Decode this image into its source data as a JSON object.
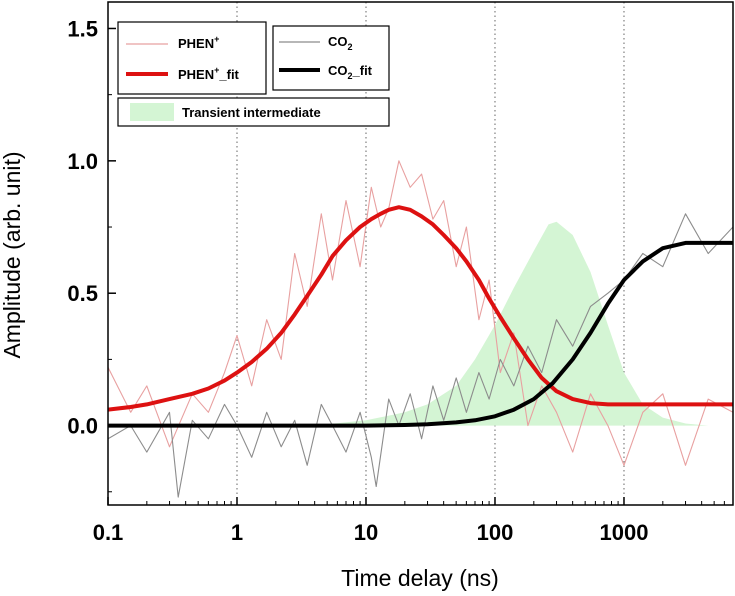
{
  "chart_data": {
    "type": "line",
    "xscale": "log",
    "xlabel": "Time delay (ns)",
    "ylabel": "Amplitude (arb. unit)",
    "xlim": [
      0.1,
      7000
    ],
    "ylim": [
      -0.3,
      1.6
    ],
    "xticks": [
      0.1,
      1,
      10,
      100,
      1000
    ],
    "xtick_labels": [
      "0.1",
      "1",
      "10",
      "100",
      "1000"
    ],
    "yticks": [
      0.0,
      0.5,
      1.0,
      1.5
    ],
    "ytick_labels": [
      "0.0",
      "0.5",
      "1.0",
      "1.5"
    ],
    "vertical_gridlines": [
      1,
      10,
      100,
      1000
    ],
    "series": [
      {
        "name": "PHEN+",
        "kind": "raw",
        "color": "#e8a0a0",
        "x": [
          0.1,
          0.15,
          0.2,
          0.3,
          0.45,
          0.6,
          0.8,
          1.0,
          1.3,
          1.7,
          2.2,
          2.8,
          3.5,
          4.5,
          5.5,
          7,
          9,
          11,
          13,
          15,
          18,
          22,
          27,
          33,
          40,
          50,
          60,
          75,
          90,
          110,
          140,
          180,
          230,
          300,
          400,
          550,
          750,
          1000,
          1400,
          2000,
          3000,
          4500,
          7000
        ],
        "values": [
          0.22,
          0.05,
          0.15,
          -0.08,
          0.12,
          0.05,
          0.2,
          0.34,
          0.15,
          0.4,
          0.25,
          0.65,
          0.45,
          0.8,
          0.55,
          0.85,
          0.6,
          0.9,
          0.75,
          0.82,
          1.0,
          0.9,
          0.95,
          0.78,
          0.85,
          0.6,
          0.75,
          0.4,
          0.55,
          0.2,
          0.35,
          0.0,
          0.15,
          0.05,
          -0.1,
          0.12,
          0.0,
          -0.15,
          0.05,
          0.12,
          -0.15,
          0.1,
          0.05
        ]
      },
      {
        "name": "CO2",
        "kind": "raw",
        "color": "#8c8c8c",
        "x": [
          0.1,
          0.15,
          0.2,
          0.3,
          0.35,
          0.45,
          0.6,
          0.8,
          1.0,
          1.3,
          1.7,
          2.2,
          2.8,
          3.5,
          4.5,
          5.5,
          7,
          9,
          11,
          12,
          15,
          18,
          22,
          27,
          33,
          40,
          50,
          60,
          75,
          90,
          110,
          140,
          180,
          230,
          300,
          400,
          550,
          750,
          1000,
          1400,
          2000,
          3000,
          4500,
          7000
        ],
        "values": [
          -0.05,
          0.0,
          -0.1,
          0.05,
          -0.27,
          0.02,
          -0.05,
          0.08,
          0.0,
          -0.12,
          0.05,
          -0.08,
          0.02,
          -0.15,
          0.08,
          0.0,
          -0.1,
          0.05,
          -0.12,
          -0.23,
          0.1,
          0.0,
          0.12,
          -0.05,
          0.15,
          0.02,
          0.18,
          0.05,
          0.2,
          0.1,
          0.25,
          0.15,
          0.3,
          0.2,
          0.4,
          0.3,
          0.45,
          0.5,
          0.55,
          0.65,
          0.6,
          0.8,
          0.65,
          0.75
        ]
      },
      {
        "name": "PHEN+_fit",
        "kind": "fit",
        "color": "#dd1111",
        "x": [
          0.1,
          0.15,
          0.2,
          0.3,
          0.45,
          0.6,
          0.8,
          1.0,
          1.3,
          1.7,
          2.2,
          2.8,
          3.5,
          4.5,
          5.5,
          7,
          9,
          11,
          13,
          15,
          18,
          22,
          27,
          33,
          40,
          50,
          60,
          75,
          90,
          110,
          140,
          180,
          230,
          300,
          400,
          550,
          750,
          1000,
          1400,
          2000,
          3000,
          4500,
          7000
        ],
        "values": [
          0.06,
          0.07,
          0.08,
          0.1,
          0.12,
          0.14,
          0.17,
          0.2,
          0.24,
          0.29,
          0.35,
          0.42,
          0.49,
          0.57,
          0.64,
          0.7,
          0.75,
          0.78,
          0.8,
          0.815,
          0.825,
          0.815,
          0.79,
          0.76,
          0.72,
          0.67,
          0.62,
          0.55,
          0.48,
          0.41,
          0.33,
          0.25,
          0.18,
          0.13,
          0.1,
          0.085,
          0.08,
          0.08,
          0.08,
          0.08,
          0.08,
          0.08,
          0.08
        ]
      },
      {
        "name": "CO2_fit",
        "kind": "fit",
        "color": "#000000",
        "x": [
          0.1,
          1,
          10,
          20,
          30,
          50,
          70,
          100,
          140,
          200,
          280,
          400,
          550,
          750,
          1000,
          1400,
          2000,
          3000,
          4500,
          7000
        ],
        "values": [
          0.0,
          0.0,
          0.0,
          0.002,
          0.005,
          0.012,
          0.02,
          0.035,
          0.06,
          0.1,
          0.16,
          0.25,
          0.35,
          0.46,
          0.55,
          0.62,
          0.67,
          0.69,
          0.69,
          0.69
        ]
      },
      {
        "name": "Transient intermediate",
        "kind": "area",
        "color": "#d4f5d4",
        "x": [
          2,
          3,
          5,
          10,
          20,
          30,
          50,
          70,
          100,
          140,
          200,
          260,
          300,
          400,
          550,
          750,
          1000,
          1400,
          2000,
          3000,
          4500
        ],
        "values": [
          0.0,
          0.002,
          0.005,
          0.02,
          0.05,
          0.08,
          0.15,
          0.25,
          0.38,
          0.52,
          0.66,
          0.76,
          0.77,
          0.72,
          0.58,
          0.38,
          0.2,
          0.08,
          0.03,
          0.008,
          0.0
        ]
      }
    ],
    "legend": [
      {
        "label": "PHEN",
        "sup": "+",
        "suffix": "",
        "style": "raw",
        "color": "#e8a0a0"
      },
      {
        "label": "PHEN",
        "sup": "+",
        "suffix": "_fit",
        "style": "fit",
        "color": "#dd1111"
      },
      {
        "label": "CO",
        "sub": "2",
        "suffix": "",
        "style": "raw",
        "color": "#8c8c8c"
      },
      {
        "label": "CO",
        "sub": "2",
        "suffix": "_fit",
        "style": "fit",
        "color": "#000000"
      },
      {
        "label": "Transient intermediate",
        "style": "area",
        "color": "#d4f5d4"
      }
    ]
  }
}
